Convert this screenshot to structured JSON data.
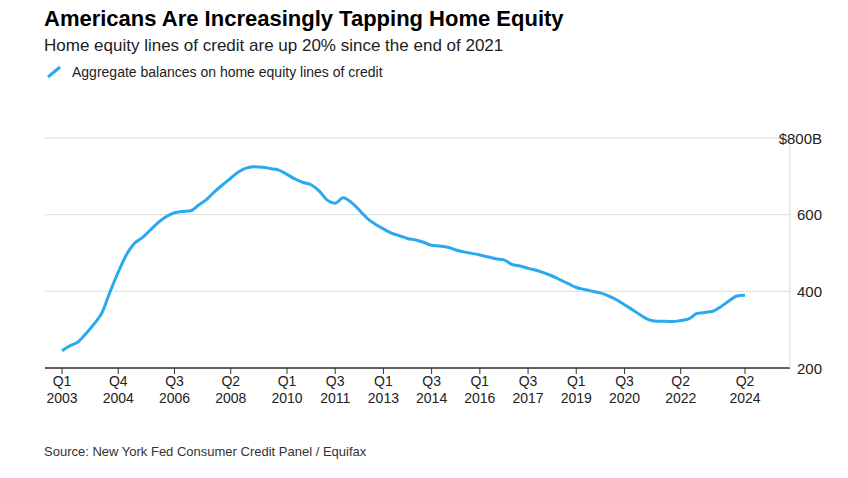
{
  "chart_data": {
    "type": "line",
    "title": "Americans Are Increasingly Tapping Home Equity",
    "subtitle": "Home equity lines of credit are up 20% since the end of 2021",
    "source": "Source: New York Fed Consumer Credit Panel / Equifax",
    "categories": [
      "Q1 2003",
      null,
      null,
      null,
      null,
      null,
      null,
      "Q4 2004",
      null,
      null,
      null,
      null,
      null,
      null,
      "Q3 2006",
      null,
      null,
      null,
      null,
      null,
      null,
      "Q2 2008",
      null,
      null,
      null,
      null,
      null,
      null,
      "Q1 2010",
      null,
      null,
      null,
      null,
      null,
      "Q3 2011",
      null,
      null,
      null,
      null,
      null,
      "Q1 2013",
      null,
      null,
      null,
      null,
      null,
      "Q3 2014",
      null,
      null,
      null,
      null,
      null,
      "Q1 2016",
      null,
      null,
      null,
      null,
      null,
      "Q3 2017",
      null,
      null,
      null,
      null,
      null,
      "Q1 2019",
      null,
      null,
      null,
      null,
      null,
      "Q3 2020",
      null,
      null,
      null,
      null,
      null,
      null,
      "Q2 2022",
      null,
      null,
      null,
      null,
      null,
      null,
      null,
      "Q2 2024"
    ],
    "series": [
      {
        "name": "Aggregate balances on home equity lines of credit",
        "color": "#2aa9f0",
        "values": [
          245,
          258,
          268,
          290,
          315,
          345,
          400,
          450,
          495,
          525,
          540,
          560,
          580,
          595,
          605,
          608,
          610,
          625,
          640,
          660,
          678,
          695,
          712,
          722,
          725,
          724,
          720,
          716,
          705,
          693,
          684,
          678,
          662,
          638,
          630,
          644,
          632,
          612,
          590,
          575,
          563,
          552,
          545,
          538,
          534,
          528,
          520,
          518,
          515,
          508,
          503,
          499,
          495,
          490,
          485,
          482,
          470,
          466,
          460,
          455,
          448,
          440,
          430,
          420,
          410,
          405,
          400,
          396,
          388,
          378,
          365,
          352,
          338,
          326,
          322,
          322,
          321,
          324,
          328,
          342,
          345,
          348,
          360,
          375,
          388,
          390
        ]
      }
    ],
    "ylim": [
      200,
      800
    ],
    "yticks": [
      200,
      400,
      600,
      {
        "value": 800,
        "label": "$800B"
      }
    ],
    "grid": true,
    "legend": "top-left"
  }
}
